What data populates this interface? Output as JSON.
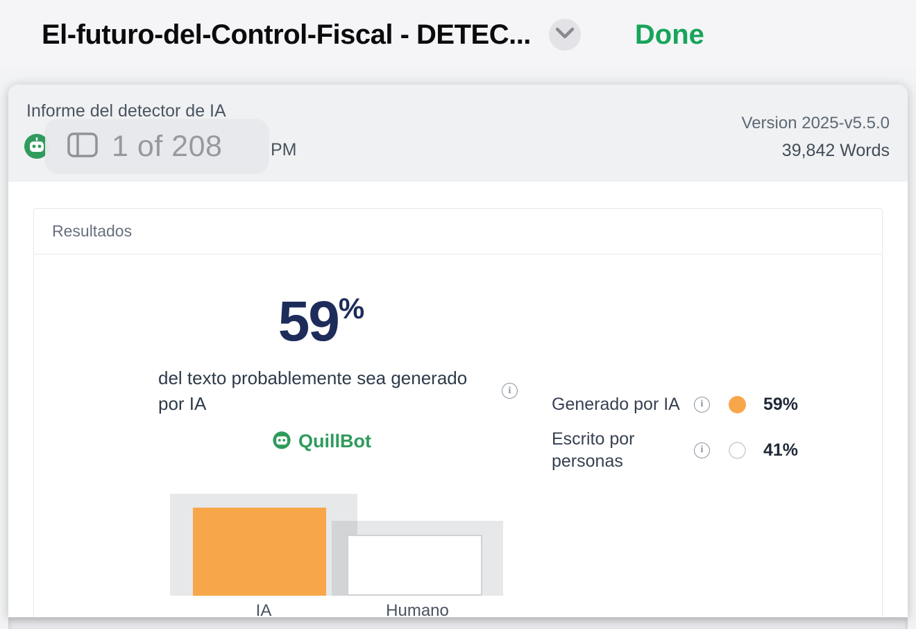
{
  "top_bar": {
    "title": "El-futuro-del-Control-Fiscal - DETEC...",
    "done_label": "Done"
  },
  "doc_header": {
    "title_fragment": "Informe del detector de IA",
    "time_fragment": "PM",
    "page_indicator": "1 of 208",
    "version": "Version 2025-v5.5.0",
    "word_count": "39,842 Words"
  },
  "results": {
    "section_title": "Resultados",
    "score_value": "59",
    "score_percent_sign": "%",
    "description": "del texto probablemente sea generado por IA",
    "brand_name": "QuillBot",
    "legend": [
      {
        "label": "Generado por IA",
        "value": "59%"
      },
      {
        "label": "Escrito por personas",
        "value": "41%"
      }
    ]
  },
  "chart_data": {
    "type": "bar",
    "categories": [
      "IA",
      "Humano"
    ],
    "values": [
      59,
      41
    ],
    "series_colors": [
      "#F7A649",
      "#FFFFFF"
    ],
    "title": "",
    "xlabel": "",
    "ylabel": "",
    "ylim": [
      0,
      100
    ],
    "legend_position": "right",
    "grid": false
  },
  "colors": {
    "accent_green": "#17A45A",
    "quillbot_green": "#2F9B5C",
    "score_navy": "#1E2C5A",
    "ai_orange": "#F7A649"
  }
}
